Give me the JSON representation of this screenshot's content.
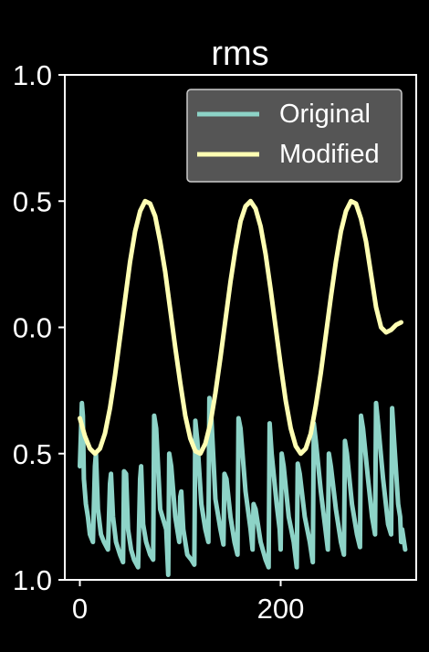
{
  "chart_data": {
    "type": "line",
    "title": "rms",
    "xlabel": "",
    "ylabel": "",
    "xlim": [
      -15,
      335
    ],
    "ylim": [
      -1.0,
      1.0
    ],
    "x_ticks": [
      {
        "value": 0,
        "label": "0"
      },
      {
        "value": 200,
        "label": "200"
      }
    ],
    "y_ticks": [
      {
        "value": 1.0,
        "label": "1.0"
      },
      {
        "value": 0.5,
        "label": "0.5"
      },
      {
        "value": 0.0,
        "label": "0.0"
      },
      {
        "value": -0.5,
        "label": "0.5"
      },
      {
        "value": -1.0,
        "label": "1.0"
      }
    ],
    "grid": false,
    "legend": {
      "position": "top-right",
      "frame_color": "#555555"
    },
    "colors": {
      "background": "#000000",
      "axes": "#ffffff",
      "original": "#8dd3c7",
      "modified": "#ffffb3"
    },
    "series": [
      {
        "name": "Original",
        "x": [
          0,
          2,
          3,
          4,
          6,
          8,
          10,
          13,
          15,
          16,
          18,
          21,
          24,
          28,
          30,
          31,
          33,
          36,
          40,
          43,
          44,
          46,
          48,
          51,
          54,
          58,
          60,
          61,
          63,
          66,
          70,
          73,
          74,
          76,
          80,
          86,
          88,
          89,
          91,
          95,
          99,
          100,
          101,
          103,
          107,
          111,
          114,
          115,
          117,
          121,
          125,
          128,
          129,
          131,
          135,
          140,
          143,
          144,
          146,
          150,
          154,
          157,
          158,
          160,
          165,
          170,
          172,
          173,
          175,
          180,
          185,
          188,
          189,
          191,
          196,
          199,
          200,
          201,
          203,
          208,
          213,
          216,
          217,
          219,
          224,
          229,
          232,
          233,
          235,
          240,
          244,
          247,
          248,
          250,
          255,
          260,
          263,
          264,
          266,
          271,
          276,
          279,
          280,
          282,
          287,
          291,
          294,
          295,
          297,
          302,
          307,
          310,
          311,
          313,
          317,
          319,
          320,
          321,
          324
        ],
        "y": [
          -0.55,
          -0.3,
          -0.35,
          -0.6,
          -0.7,
          -0.75,
          -0.82,
          -0.85,
          -0.55,
          -0.5,
          -0.72,
          -0.82,
          -0.85,
          -0.88,
          -0.62,
          -0.58,
          -0.75,
          -0.85,
          -0.9,
          -0.93,
          -0.57,
          -0.58,
          -0.8,
          -0.88,
          -0.92,
          -0.95,
          -0.6,
          -0.55,
          -0.78,
          -0.85,
          -0.9,
          -0.92,
          -0.35,
          -0.4,
          -0.72,
          -0.8,
          -0.98,
          -0.5,
          -0.55,
          -0.75,
          -0.85,
          -0.67,
          -0.65,
          -0.8,
          -0.9,
          -0.92,
          -0.94,
          -0.37,
          -0.45,
          -0.7,
          -0.8,
          -0.85,
          -0.28,
          -0.36,
          -0.68,
          -0.8,
          -0.86,
          -0.58,
          -0.6,
          -0.75,
          -0.85,
          -0.9,
          -0.36,
          -0.4,
          -0.65,
          -0.8,
          -0.88,
          -0.7,
          -0.72,
          -0.85,
          -0.92,
          -0.95,
          -0.38,
          -0.5,
          -0.7,
          -0.8,
          -0.88,
          -0.5,
          -0.55,
          -0.75,
          -0.85,
          -0.95,
          -0.54,
          -0.58,
          -0.75,
          -0.85,
          -0.93,
          -0.38,
          -0.45,
          -0.65,
          -0.78,
          -0.88,
          -0.5,
          -0.55,
          -0.72,
          -0.85,
          -0.9,
          -0.45,
          -0.5,
          -0.7,
          -0.82,
          -0.87,
          -0.35,
          -0.4,
          -0.6,
          -0.75,
          -0.82,
          -0.3,
          -0.38,
          -0.6,
          -0.78,
          -0.82,
          -0.32,
          -0.45,
          -0.7,
          -0.75,
          -0.85,
          -0.8,
          -0.88
        ]
      },
      {
        "name": "Modified",
        "x": [
          0,
          5,
          10,
          15,
          20,
          25,
          30,
          35,
          40,
          45,
          50,
          55,
          60,
          65,
          70,
          75,
          80,
          85,
          90,
          95,
          100,
          105,
          110,
          115,
          120,
          125,
          130,
          135,
          140,
          145,
          150,
          155,
          160,
          165,
          170,
          175,
          180,
          185,
          190,
          195,
          200,
          205,
          210,
          215,
          220,
          225,
          230,
          235,
          240,
          245,
          250,
          255,
          260,
          265,
          270,
          275,
          280,
          285,
          290,
          295,
          300,
          305,
          310,
          315,
          320
        ],
        "y": [
          -0.36,
          -0.43,
          -0.48,
          -0.5,
          -0.48,
          -0.42,
          -0.32,
          -0.19,
          -0.04,
          0.11,
          0.26,
          0.38,
          0.46,
          0.5,
          0.49,
          0.44,
          0.34,
          0.22,
          0.07,
          -0.08,
          -0.22,
          -0.35,
          -0.44,
          -0.49,
          -0.5,
          -0.46,
          -0.38,
          -0.26,
          -0.12,
          0.03,
          0.18,
          0.31,
          0.42,
          0.48,
          0.5,
          0.47,
          0.4,
          0.29,
          0.15,
          0.0,
          -0.15,
          -0.29,
          -0.4,
          -0.47,
          -0.5,
          -0.48,
          -0.42,
          -0.31,
          -0.18,
          -0.03,
          0.12,
          0.26,
          0.38,
          0.46,
          0.5,
          0.49,
          0.43,
          0.34,
          0.21,
          0.08,
          0.0,
          -0.02,
          -0.01,
          0.01,
          0.02
        ]
      }
    ]
  }
}
